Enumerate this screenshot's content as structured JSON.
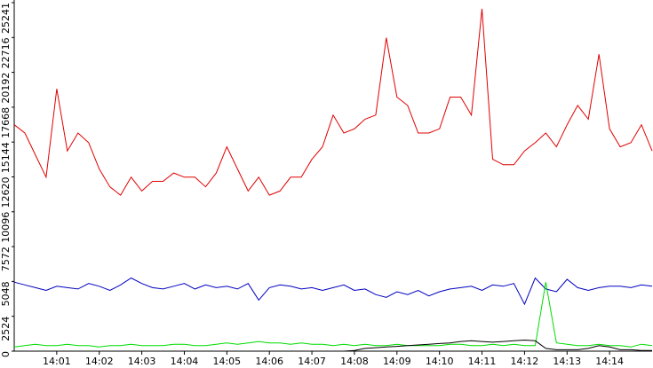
{
  "chart_data": {
    "type": "line",
    "xlim": [
      0,
      60
    ],
    "xticks": [
      {
        "value": 4,
        "label": "14:01"
      },
      {
        "value": 8,
        "label": "14:02"
      },
      {
        "value": 12,
        "label": "14:03"
      },
      {
        "value": 16,
        "label": "14:04"
      },
      {
        "value": 20,
        "label": "14:05"
      },
      {
        "value": 24,
        "label": "14:06"
      },
      {
        "value": 28,
        "label": "14:07"
      },
      {
        "value": 32,
        "label": "14:08"
      },
      {
        "value": 36,
        "label": "14:09"
      },
      {
        "value": 40,
        "label": "14:10"
      },
      {
        "value": 44,
        "label": "14:11"
      },
      {
        "value": 48,
        "label": "14:12"
      },
      {
        "value": 52,
        "label": "14:13"
      },
      {
        "value": 56,
        "label": "14:14"
      }
    ],
    "ylim": [
      0,
      25241
    ],
    "yticks": [
      0,
      2524,
      5048,
      7572,
      10096,
      12620,
      15144,
      17668,
      20192,
      22716,
      25241
    ],
    "grid": false,
    "series": [
      {
        "color": "#e00000",
        "values": [
          16400,
          15800,
          14200,
          12600,
          19000,
          14500,
          15800,
          15100,
          13200,
          11900,
          11300,
          12600,
          11600,
          12300,
          12300,
          12900,
          12600,
          12600,
          11900,
          12900,
          14800,
          13200,
          11600,
          12600,
          11300,
          11600,
          12600,
          12600,
          13900,
          14800,
          17100,
          15800,
          16100,
          16800,
          17100,
          22700,
          18400,
          17800,
          15800,
          15800,
          16100,
          18400,
          18400,
          17100,
          24800,
          13900,
          13500,
          13500,
          14500,
          15100,
          15800,
          14800,
          16400,
          17800,
          16800,
          21500,
          16100,
          14800,
          15100,
          16400,
          14500
        ]
      },
      {
        "color": "#0000c0",
        "values": [
          5000,
          4800,
          4600,
          4400,
          4700,
          4600,
          4500,
          4900,
          4700,
          4400,
          4800,
          5300,
          4900,
          4600,
          4500,
          4700,
          4900,
          4500,
          4800,
          4600,
          4700,
          4500,
          4900,
          3700,
          4600,
          4800,
          4700,
          4500,
          4600,
          4400,
          4600,
          4800,
          4400,
          4500,
          4100,
          3900,
          4300,
          4100,
          4400,
          4000,
          4300,
          4500,
          4600,
          4700,
          4400,
          4800,
          4700,
          4900,
          3400,
          5300,
          4500,
          4300,
          5200,
          4600,
          4400,
          4600,
          4700,
          4700,
          4600,
          4800,
          4700
        ]
      },
      {
        "color": "#00dd00",
        "values": [
          300,
          400,
          500,
          400,
          400,
          500,
          400,
          400,
          300,
          400,
          400,
          500,
          400,
          400,
          400,
          500,
          500,
          400,
          400,
          500,
          600,
          500,
          600,
          700,
          600,
          600,
          500,
          600,
          500,
          500,
          400,
          500,
          400,
          500,
          400,
          400,
          500,
          400,
          400,
          400,
          400,
          500,
          500,
          400,
          400,
          500,
          400,
          500,
          400,
          400,
          5000,
          600,
          500,
          400,
          400,
          500,
          400,
          400,
          300,
          500,
          400
        ]
      },
      {
        "color": "#000000",
        "values": [
          0,
          0,
          0,
          0,
          0,
          0,
          0,
          0,
          0,
          0,
          0,
          0,
          0,
          0,
          0,
          0,
          0,
          0,
          0,
          0,
          0,
          0,
          0,
          0,
          0,
          0,
          0,
          0,
          0,
          0,
          0,
          0,
          50,
          200,
          250,
          300,
          350,
          400,
          450,
          500,
          550,
          600,
          700,
          750,
          700,
          650,
          700,
          750,
          800,
          750,
          200,
          100,
          100,
          100,
          200,
          400,
          300,
          100,
          100,
          50,
          50
        ]
      }
    ]
  }
}
